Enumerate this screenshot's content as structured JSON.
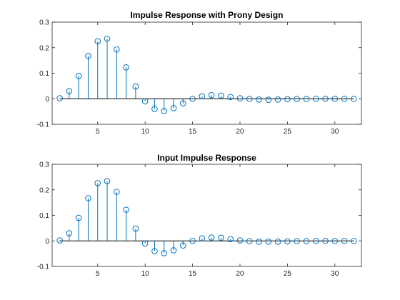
{
  "colors": {
    "stem": "#0072bd",
    "axis": "#262626",
    "baseline": "#000000"
  },
  "chart_data": [
    {
      "type": "stem",
      "title": "Impulse Response with Prony Design",
      "xlabel": "",
      "ylabel": "",
      "xlim": [
        0.2,
        32.8
      ],
      "ylim": [
        -0.1,
        0.3
      ],
      "xticks": [
        5,
        10,
        15,
        20,
        25,
        30
      ],
      "yticks": [
        -0.1,
        0,
        0.1,
        0.2,
        0.3
      ],
      "ytick_labels": [
        "-0.1",
        "0",
        "0.1",
        "0.2",
        "0.3"
      ],
      "x": [
        1,
        2,
        3,
        4,
        5,
        6,
        7,
        8,
        9,
        10,
        11,
        12,
        13,
        14,
        15,
        16,
        17,
        18,
        19,
        20,
        21,
        22,
        23,
        24,
        25,
        26,
        27,
        28,
        29,
        30,
        31,
        32
      ],
      "values": [
        0.002,
        0.03,
        0.09,
        0.168,
        0.225,
        0.235,
        0.193,
        0.123,
        0.048,
        -0.01,
        -0.04,
        -0.048,
        -0.037,
        -0.018,
        0,
        0.01,
        0.014,
        0.012,
        0.007,
        0.002,
        -0.001,
        -0.003,
        -0.004,
        -0.003,
        -0.002,
        -0.001,
        -0.001,
        0,
        0,
        0,
        0,
        -0.001
      ]
    },
    {
      "type": "stem",
      "title": "Input Impulse Response",
      "xlabel": "",
      "ylabel": "",
      "xlim": [
        0.2,
        32.8
      ],
      "ylim": [
        -0.1,
        0.3
      ],
      "xticks": [
        5,
        10,
        15,
        20,
        25,
        30
      ],
      "yticks": [
        -0.1,
        0,
        0.1,
        0.2,
        0.3
      ],
      "ytick_labels": [
        "-0.1",
        "0",
        "0.1",
        "0.2",
        "0.3"
      ],
      "x": [
        1,
        2,
        3,
        4,
        5,
        6,
        7,
        8,
        9,
        10,
        11,
        12,
        13,
        14,
        15,
        16,
        17,
        18,
        19,
        20,
        21,
        22,
        23,
        24,
        25,
        26,
        27,
        28,
        29,
        30,
        31,
        32
      ],
      "values": [
        0.002,
        0.03,
        0.09,
        0.167,
        0.226,
        0.234,
        0.192,
        0.122,
        0.048,
        -0.01,
        -0.04,
        -0.048,
        -0.037,
        -0.018,
        0,
        0.01,
        0.013,
        0.012,
        0.007,
        0.002,
        -0.001,
        -0.003,
        -0.003,
        -0.003,
        -0.002,
        -0.001,
        -0.001,
        0,
        0,
        0,
        0,
        0
      ]
    }
  ]
}
